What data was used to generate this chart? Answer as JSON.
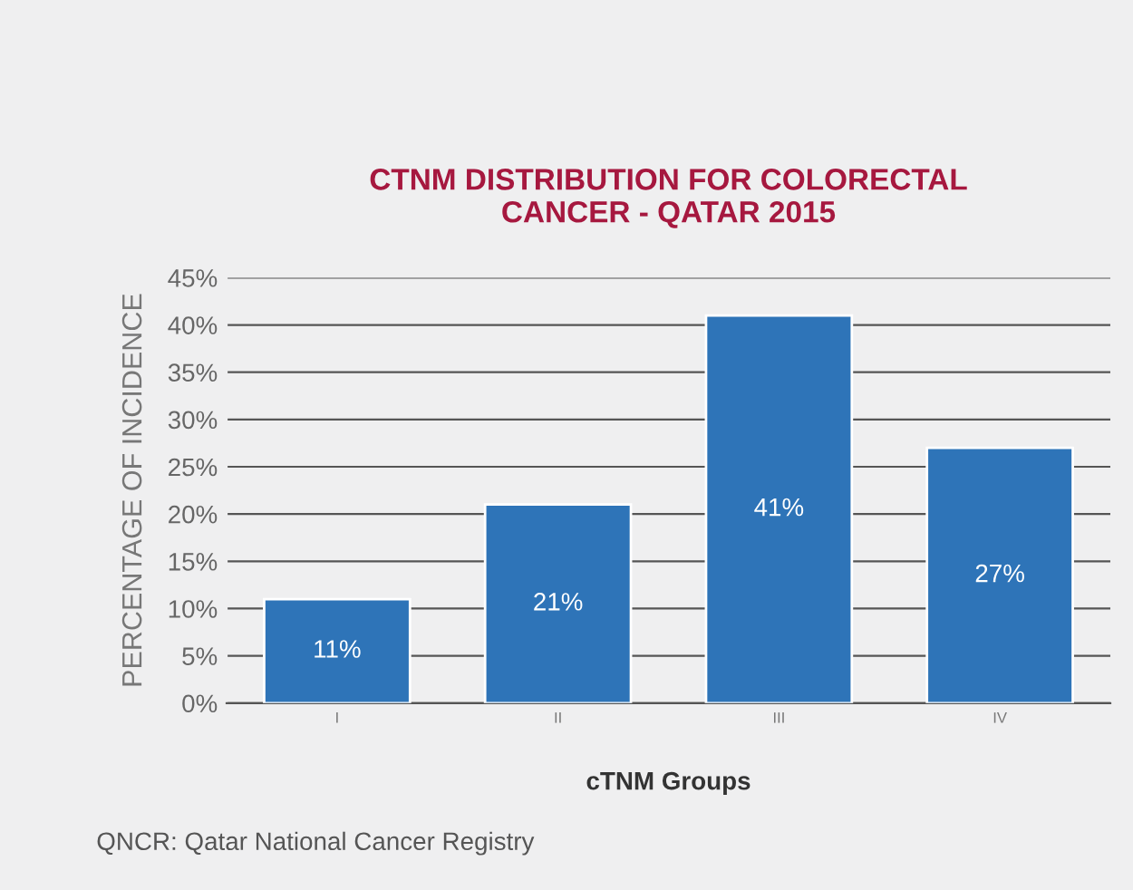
{
  "chart_data": {
    "type": "bar",
    "title": "CTNM DISTRIBUTION FOR COLORECTAL\nCANCER - QATAR 2015",
    "xlabel": "cTNM Groups",
    "ylabel": "PERCENTAGE OF INCIDENCE",
    "categories": [
      "I",
      "II",
      "III",
      "IV"
    ],
    "values": [
      11,
      21,
      41,
      27
    ],
    "value_labels": [
      "11%",
      "21%",
      "41%",
      "27%"
    ],
    "color": "#2e74b8",
    "ylim": [
      0,
      45
    ],
    "yticks": [
      {
        "value": 0,
        "label": "0%"
      },
      {
        "value": 5,
        "label": "5%"
      },
      {
        "value": 10,
        "label": "10%"
      },
      {
        "value": 15,
        "label": "15%"
      },
      {
        "value": 20,
        "label": "20%"
      },
      {
        "value": 25,
        "label": "25%"
      },
      {
        "value": 30,
        "label": "30%"
      },
      {
        "value": 35,
        "label": "35%"
      },
      {
        "value": 40,
        "label": "40%"
      },
      {
        "value": 45,
        "label": "45%"
      }
    ],
    "grid": "y",
    "annotations": [
      "QNCR: Qatar National Cancer Registry"
    ]
  }
}
